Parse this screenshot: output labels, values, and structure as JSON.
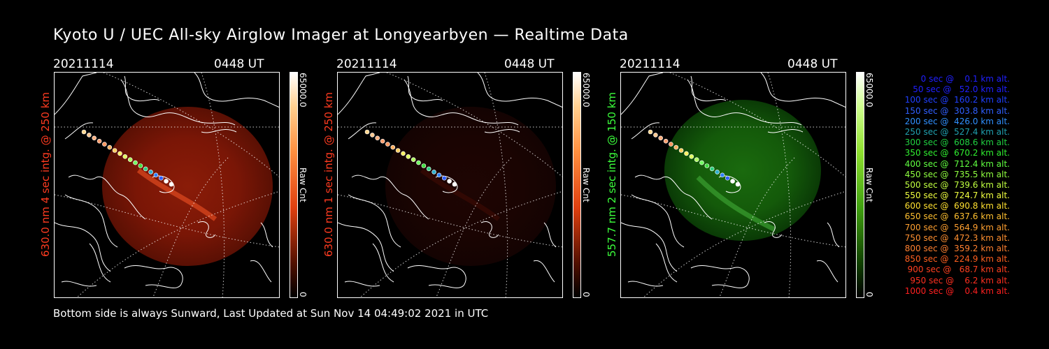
{
  "title": "Kyoto U / UEC All-sky Airglow Imager at Longyearbyen — Realtime Data",
  "footer": "Bottom side is always Sunward, Last Updated at Sun Nov 14 04:49:02 2021 in UTC",
  "panels": [
    {
      "date": "20211114",
      "time": "0448 UT",
      "ylabel": "630.0 nm  4 sec intg. @ 250 km",
      "ylabel_color": "#ff3b20",
      "cbar_max": "65000.0",
      "cbar_min": "0",
      "cbar_label": "Raw Cnt",
      "scheme": "red",
      "glow_level": "bright"
    },
    {
      "date": "20211114",
      "time": "0448 UT",
      "ylabel": "630.0 nm  1 sec intg. @ 250 km",
      "ylabel_color": "#ff3b20",
      "cbar_max": "65000.0",
      "cbar_min": "0",
      "cbar_label": "Raw Cnt",
      "scheme": "red",
      "glow_level": "dim"
    },
    {
      "date": "20211114",
      "time": "0448 UT",
      "ylabel": "557.7 nm  2 sec intg. @ 150 km",
      "ylabel_color": "#3cff3c",
      "cbar_max": "65000.0",
      "cbar_min": "0",
      "cbar_label": "Raw Cnt",
      "scheme": "green",
      "glow_level": "bright"
    }
  ],
  "legend": [
    {
      "text": "   0 sec @    0.1 km alt.",
      "color": "#2020ff"
    },
    {
      "text": "  50 sec @   52.0 km alt.",
      "color": "#2020ff"
    },
    {
      "text": " 100 sec @  160.2 km alt.",
      "color": "#2040ff"
    },
    {
      "text": " 150 sec @  303.8 km alt.",
      "color": "#3060ff"
    },
    {
      "text": " 200 sec @  426.0 km alt.",
      "color": "#3090ff"
    },
    {
      "text": " 250 sec @  527.4 km alt.",
      "color": "#20a0b0"
    },
    {
      "text": " 300 sec @  608.6 km alt.",
      "color": "#20d040"
    },
    {
      "text": " 350 sec @  670.2 km alt.",
      "color": "#30f030"
    },
    {
      "text": " 400 sec @  712.4 km alt.",
      "color": "#60ff40"
    },
    {
      "text": " 450 sec @  735.5 km alt.",
      "color": "#90ff40"
    },
    {
      "text": " 500 sec @  739.6 km alt.",
      "color": "#c0ff40"
    },
    {
      "text": " 550 sec @  724.7 km alt.",
      "color": "#f0ff40"
    },
    {
      "text": " 600 sec @  690.8 km alt.",
      "color": "#ffe030"
    },
    {
      "text": " 650 sec @  637.6 km alt.",
      "color": "#ffc030"
    },
    {
      "text": " 700 sec @  564.9 km alt.",
      "color": "#ffa030"
    },
    {
      "text": " 750 sec @  472.3 km alt.",
      "color": "#ff9030"
    },
    {
      "text": " 800 sec @  359.2 km alt.",
      "color": "#ff8030"
    },
    {
      "text": " 850 sec @  224.9 km alt.",
      "color": "#ff6020"
    },
    {
      "text": " 900 sec @   68.7 km alt.",
      "color": "#ff4020"
    },
    {
      "text": " 950 sec @    6.2 km alt.",
      "color": "#ff3020"
    },
    {
      "text": "1000 sec @    0.4 km alt.",
      "color": "#ff2020"
    }
  ],
  "track_colors": [
    "#ffd890",
    "#ffc890",
    "#ffb080",
    "#ffa070",
    "#ff9860",
    "#ffb060",
    "#ffd060",
    "#fff060",
    "#e0ff60",
    "#b0ff60",
    "#70ff60",
    "#40e040",
    "#30d080",
    "#30b0d0",
    "#3080ff",
    "#3060ff",
    "#ffffff",
    "#ffffff"
  ]
}
